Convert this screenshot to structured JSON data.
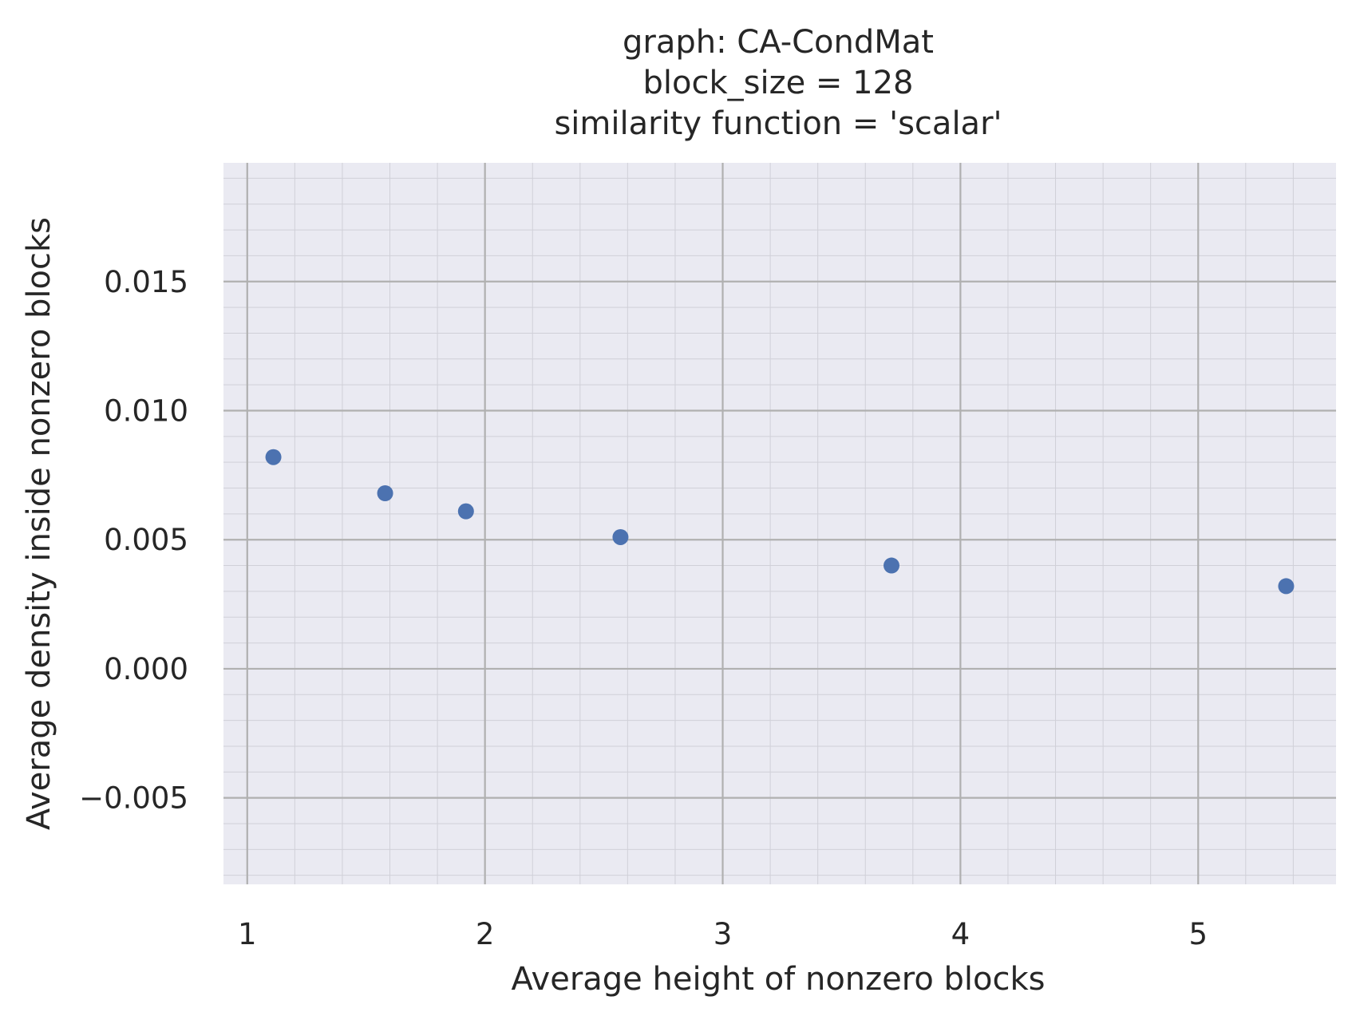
{
  "chart_data": {
    "type": "scatter",
    "title_lines": [
      "graph: CA-CondMat",
      "block_size = 128",
      "similarity function = 'scalar'"
    ],
    "xlabel": "Average height of nonzero blocks",
    "ylabel": "Average density inside nonzero blocks",
    "xlim": [
      0.9,
      5.58
    ],
    "ylim": [
      -0.00835,
      0.0196
    ],
    "x_ticks": [
      1,
      2,
      3,
      4,
      5
    ],
    "x_tick_labels": [
      "1",
      "2",
      "3",
      "4",
      "5"
    ],
    "y_ticks": [
      -0.005,
      0.0,
      0.005,
      0.01,
      0.015
    ],
    "y_tick_labels": [
      "−0.005",
      "0.000",
      "0.005",
      "0.010",
      "0.015"
    ],
    "x_minor_step": 0.2,
    "y_minor_step": 0.001,
    "grid": "major and minor",
    "series": [
      {
        "x": [
          1.11,
          1.58,
          1.92,
          2.57,
          3.71,
          5.37
        ],
        "y": [
          0.0082,
          0.0068,
          0.0061,
          0.0051,
          0.004,
          0.0032
        ]
      }
    ],
    "colors": {
      "background": "#eaeaf2",
      "marker": "#4c72b0",
      "major_grid": "#b0b0b0",
      "minor_grid": "#d0d0d8"
    }
  }
}
